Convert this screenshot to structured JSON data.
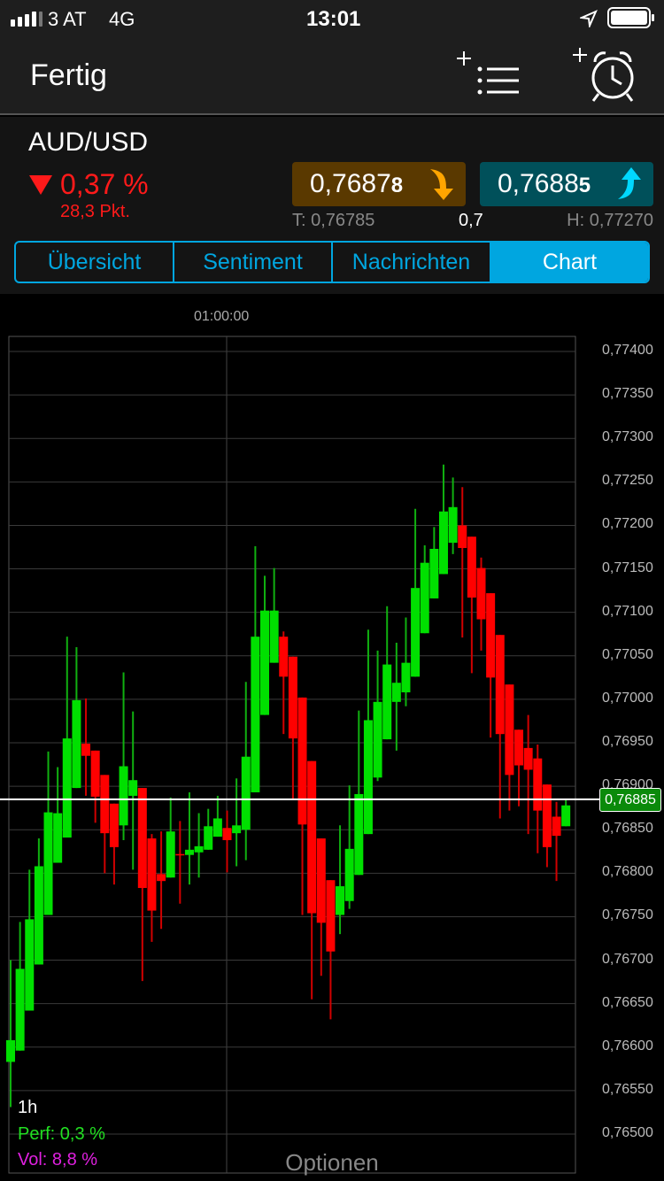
{
  "status": {
    "carrier": "3 AT",
    "network": "4G",
    "time": "13:01"
  },
  "header": {
    "done_label": "Fertig",
    "add_watchlist_icon": "plus-list-icon",
    "add_alarm_icon": "plus-alarm-clock-icon"
  },
  "quote": {
    "symbol": "AUD/USD",
    "change_pct": "0,37 %",
    "change_pts": "28,3 Pkt.",
    "bid_main": "0,7687",
    "bid_last": "8",
    "ask_main": "0,7688",
    "ask_last": "5",
    "low": "T: 0,76785",
    "spread": "0,7",
    "high": "H: 0,77270",
    "colors": {
      "down": "#ff1a1a",
      "bid_bg": "#5a3900",
      "ask_bg": "#00505a",
      "accent": "#00a6e0"
    }
  },
  "tabs": [
    {
      "label": "Übersicht"
    },
    {
      "label": "Sentiment"
    },
    {
      "label": "Nachrichten"
    },
    {
      "label": "Chart",
      "active": true
    }
  ],
  "chart_data": {
    "type": "candlestick",
    "x_tick_labels": [
      "01:00:00"
    ],
    "y_tick_labels": [
      "0,77400",
      "0,77350",
      "0,77300",
      "0,77250",
      "0,77200",
      "0,77150",
      "0,77100",
      "0,77050",
      "0,77000",
      "0,76950",
      "0,76900",
      "0,76850",
      "0,76800",
      "0,76750",
      "0,76700",
      "0,76650",
      "0,76600",
      "0,76550",
      "0,76500"
    ],
    "ylim": [
      0.765,
      0.774
    ],
    "grid": true,
    "current_price": 0.76885,
    "current_price_label": "0,76885",
    "colors": {
      "up": "#00e000",
      "down": "#ff0000"
    },
    "ohlc": [
      [
        0.76583,
        0.767,
        0.76531,
        0.76608
      ],
      [
        0.76596,
        0.76744,
        0.76596,
        0.7669
      ],
      [
        0.76642,
        0.76804,
        0.76642,
        0.76747
      ],
      [
        0.76695,
        0.7684,
        0.76695,
        0.76808
      ],
      [
        0.76752,
        0.7694,
        0.76752,
        0.7687
      ],
      [
        0.76812,
        0.76922,
        0.76812,
        0.76869
      ],
      [
        0.76841,
        0.77072,
        0.76841,
        0.76955
      ],
      [
        0.76898,
        0.7706,
        0.76898,
        0.76999
      ],
      [
        0.76949,
        0.77001,
        0.76889,
        0.76935
      ],
      [
        0.76941,
        0.76941,
        0.76858,
        0.76888
      ],
      [
        0.76913,
        0.76913,
        0.768,
        0.76846
      ],
      [
        0.7688,
        0.7688,
        0.76787,
        0.7683
      ],
      [
        0.76855,
        0.77031,
        0.76838,
        0.76923
      ],
      [
        0.76889,
        0.76986,
        0.76804,
        0.76907
      ],
      [
        0.76898,
        0.76898,
        0.76676,
        0.76783
      ],
      [
        0.7684,
        0.76845,
        0.76721,
        0.76757
      ],
      [
        0.76799,
        0.76848,
        0.76736,
        0.76791
      ],
      [
        0.76795,
        0.76887,
        0.76795,
        0.76848
      ],
      [
        0.76822,
        0.7686,
        0.76765,
        0.76821
      ],
      [
        0.76821,
        0.76893,
        0.76787,
        0.76827
      ],
      [
        0.76824,
        0.76869,
        0.76795,
        0.76831
      ],
      [
        0.76827,
        0.76874,
        0.76827,
        0.76854
      ],
      [
        0.76842,
        0.76889,
        0.76842,
        0.76863
      ],
      [
        0.76852,
        0.76872,
        0.76801,
        0.76838
      ],
      [
        0.76846,
        0.76909,
        0.76808,
        0.76855
      ],
      [
        0.7685,
        0.7702,
        0.76815,
        0.76934
      ],
      [
        0.76893,
        0.77176,
        0.76893,
        0.77072
      ],
      [
        0.76982,
        0.77142,
        0.76982,
        0.77102
      ],
      [
        0.77042,
        0.77151,
        0.77042,
        0.77102
      ],
      [
        0.77072,
        0.77078,
        0.7696,
        0.77026
      ],
      [
        0.77049,
        0.77049,
        0.76885,
        0.76955
      ],
      [
        0.77002,
        0.77002,
        0.76752,
        0.76856
      ],
      [
        0.76929,
        0.76929,
        0.76655,
        0.76754
      ],
      [
        0.7684,
        0.7684,
        0.76682,
        0.76743
      ],
      [
        0.76792,
        0.76792,
        0.76632,
        0.7671
      ],
      [
        0.76752,
        0.76855,
        0.7673,
        0.76785
      ],
      [
        0.76768,
        0.76901,
        0.76759,
        0.76828
      ],
      [
        0.76798,
        0.76987,
        0.76798,
        0.76891
      ],
      [
        0.76845,
        0.7708,
        0.76845,
        0.76976
      ],
      [
        0.7691,
        0.77056,
        0.76906,
        0.76997
      ],
      [
        0.76954,
        0.77107,
        0.76954,
        0.7704
      ],
      [
        0.76997,
        0.77065,
        0.76941,
        0.77019
      ],
      [
        0.77008,
        0.77094,
        0.76992,
        0.77042
      ],
      [
        0.77026,
        0.77219,
        0.77026,
        0.77128
      ],
      [
        0.77076,
        0.77177,
        0.77076,
        0.77157
      ],
      [
        0.77116,
        0.77198,
        0.77116,
        0.77173
      ],
      [
        0.77144,
        0.7727,
        0.77144,
        0.77216
      ],
      [
        0.7718,
        0.77255,
        0.77167,
        0.77221
      ],
      [
        0.772,
        0.77244,
        0.77071,
        0.77174
      ],
      [
        0.77187,
        0.77187,
        0.7703,
        0.77117
      ],
      [
        0.77151,
        0.77163,
        0.77056,
        0.77092
      ],
      [
        0.77122,
        0.77122,
        0.76956,
        0.77025
      ],
      [
        0.77074,
        0.77074,
        0.76863,
        0.7696
      ],
      [
        0.77017,
        0.77017,
        0.76872,
        0.76913
      ],
      [
        0.76965,
        0.76965,
        0.76877,
        0.76924
      ],
      [
        0.76944,
        0.76982,
        0.76845,
        0.76919
      ],
      [
        0.76932,
        0.76948,
        0.76823,
        0.76872
      ],
      [
        0.76902,
        0.76902,
        0.76807,
        0.7683
      ],
      [
        0.76865,
        0.76882,
        0.76791,
        0.76843
      ],
      [
        0.76854,
        0.76884,
        0.76854,
        0.76878
      ]
    ]
  },
  "chart_info": {
    "interval": "1h",
    "perf": "Perf: 0,3 %",
    "vol": "Vol: 8,8 %",
    "perf_color": "#22e022",
    "vol_color": "#e020e0"
  },
  "footer": {
    "options_label": "Optionen"
  }
}
